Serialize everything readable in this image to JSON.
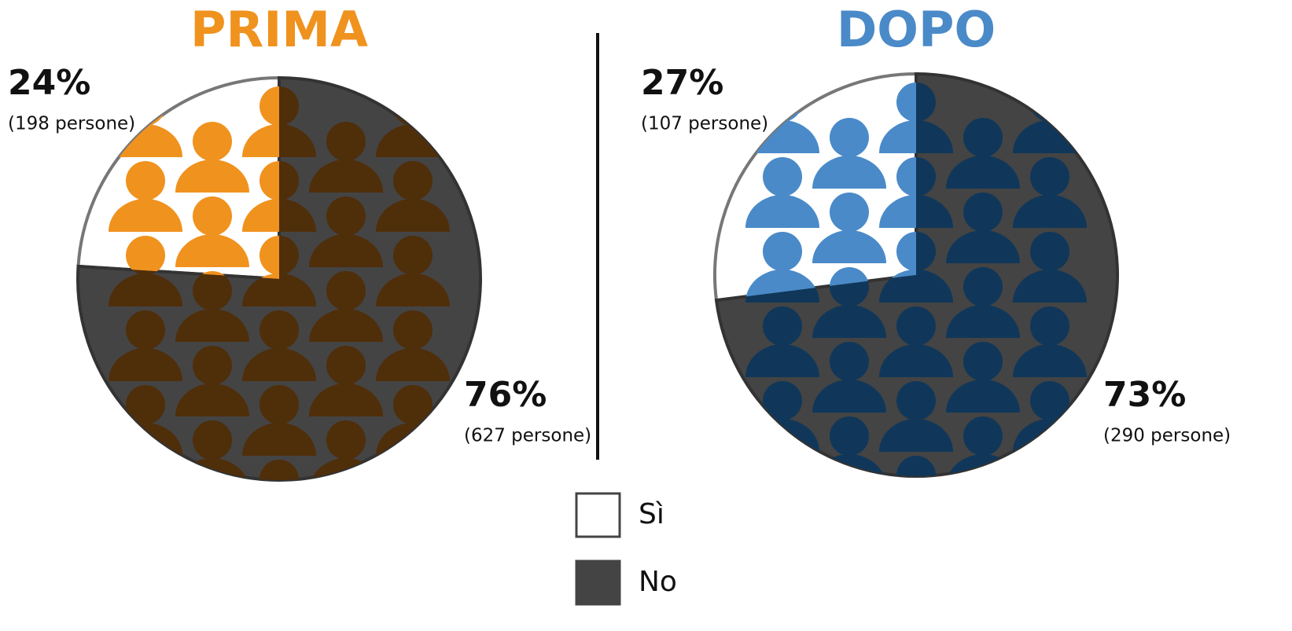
{
  "chart_data": [
    {
      "type": "pie",
      "title": "PRIMA",
      "title_color": "#f0921e",
      "categories": [
        "Sì",
        "No"
      ],
      "values": [
        24,
        76
      ],
      "value_labels": [
        "24%",
        "76%"
      ],
      "annotations": [
        "(198 persone)",
        "(627 persone)"
      ],
      "colors": [
        "#ffffff",
        "#444444"
      ],
      "icon_colors": [
        "#f0921e",
        "#4f2e0a"
      ]
    },
    {
      "type": "pie",
      "title": "DOPO",
      "title_color": "#4a8ac8",
      "categories": [
        "Sì",
        "No"
      ],
      "values": [
        27,
        73
      ],
      "value_labels": [
        "27%",
        "73%"
      ],
      "annotations": [
        "(107 persone)",
        "(290 persone)"
      ],
      "colors": [
        "#ffffff",
        "#444444"
      ],
      "icon_colors": [
        "#4a8ac8",
        "#10375a"
      ]
    }
  ]
}
